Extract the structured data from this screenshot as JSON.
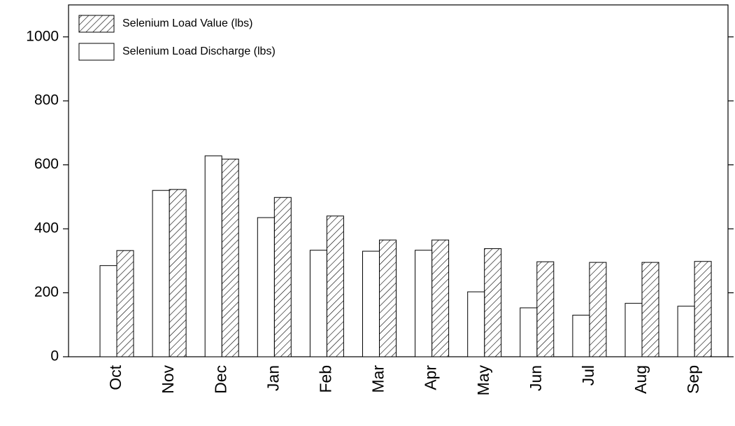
{
  "chart_data": {
    "type": "bar",
    "categories": [
      "Oct",
      "Nov",
      "Dec",
      "Jan",
      "Feb",
      "Mar",
      "Apr",
      "May",
      "Jun",
      "Jul",
      "Aug",
      "Sep"
    ],
    "series": [
      {
        "name": "Selenium Load Value (lbs)",
        "color": "#ffffff",
        "hatch": true,
        "values": [
          332,
          523,
          618,
          498,
          440,
          365,
          365,
          338,
          297,
          295,
          295,
          298
        ]
      },
      {
        "name": "Selenium Load Discharge (lbs)",
        "color": "#ffffff",
        "hatch": false,
        "values": [
          285,
          520,
          628,
          435,
          333,
          330,
          333,
          203,
          153,
          130,
          167,
          158
        ]
      }
    ],
    "ylim": [
      0,
      1100
    ],
    "yticks": [
      0,
      200,
      400,
      600,
      800,
      1000
    ]
  }
}
